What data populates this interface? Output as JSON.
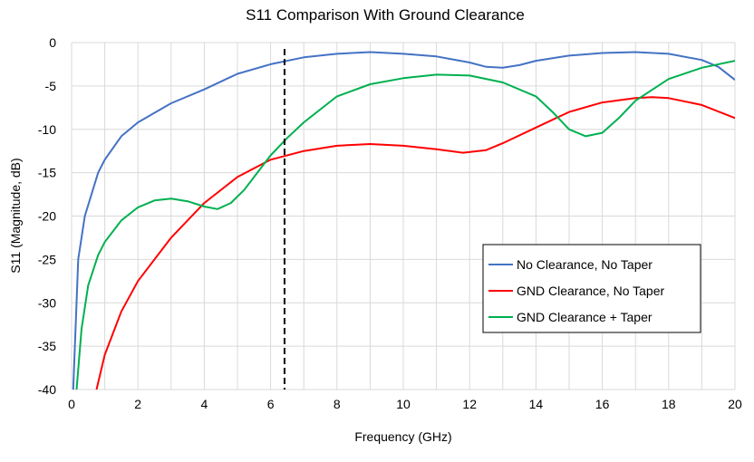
{
  "chart_data": {
    "type": "line",
    "title": "S11 Comparison With Ground Clearance",
    "xlabel": "Frequency (GHz)",
    "ylabel": "S11 (Magnitude, dB)",
    "xlim": [
      0,
      20
    ],
    "ylim": [
      -40,
      0
    ],
    "xticks": [
      0,
      2,
      4,
      6,
      8,
      10,
      12,
      14,
      16,
      18,
      20
    ],
    "yticks": [
      0,
      -5,
      -10,
      -15,
      -20,
      -25,
      -30,
      -35,
      -40
    ],
    "grid": true,
    "legend_position": "right",
    "marker_line": {
      "x": 6.42,
      "style": "dashed",
      "color": "#000000"
    },
    "series": [
      {
        "name": "No Clearance, No Taper",
        "color": "#4472C4",
        "x": [
          0.05,
          0.2,
          0.4,
          0.8,
          1.0,
          1.5,
          2,
          3,
          4,
          5,
          6,
          7,
          8,
          9,
          10,
          11,
          12,
          12.5,
          13,
          13.5,
          14,
          15,
          16,
          17,
          18,
          19,
          19.5,
          20
        ],
        "y": [
          -40,
          -25,
          -20,
          -15,
          -13.5,
          -10.8,
          -9.2,
          -7,
          -5.4,
          -3.6,
          -2.5,
          -1.7,
          -1.3,
          -1.1,
          -1.3,
          -1.6,
          -2.3,
          -2.8,
          -2.9,
          -2.6,
          -2.1,
          -1.5,
          -1.2,
          -1.1,
          -1.3,
          -2.0,
          -2.8,
          -4.3
        ]
      },
      {
        "name": "GND Clearance, No Taper",
        "color": "#FF0000",
        "x": [
          0.75,
          1,
          1.5,
          2,
          3,
          4,
          5,
          6,
          7,
          8,
          9,
          10,
          11,
          11.8,
          12.5,
          13,
          14,
          15,
          16,
          17,
          17.5,
          18,
          19,
          20
        ],
        "y": [
          -40,
          -36,
          -31,
          -27.5,
          -22.5,
          -18.5,
          -15.5,
          -13.5,
          -12.5,
          -11.9,
          -11.7,
          -11.9,
          -12.3,
          -12.7,
          -12.4,
          -11.6,
          -9.8,
          -8,
          -6.9,
          -6.4,
          -6.3,
          -6.4,
          -7.2,
          -8.7
        ]
      },
      {
        "name": "GND Clearance + Taper",
        "color": "#00B050",
        "x": [
          0.15,
          0.3,
          0.5,
          0.8,
          1,
          1.5,
          2,
          2.5,
          3,
          3.5,
          4,
          4.4,
          4.8,
          5.2,
          5.6,
          6,
          6.5,
          7,
          8,
          9,
          10,
          11,
          12,
          13,
          14,
          14.5,
          15,
          15.5,
          16,
          16.5,
          17,
          18,
          19,
          20
        ],
        "y": [
          -40,
          -33,
          -28,
          -24.5,
          -23,
          -20.5,
          -19,
          -18.2,
          -18,
          -18.3,
          -18.9,
          -19.2,
          -18.5,
          -17,
          -15,
          -13,
          -11,
          -9.2,
          -6.2,
          -4.8,
          -4.1,
          -3.7,
          -3.8,
          -4.6,
          -6.2,
          -8,
          -10,
          -10.8,
          -10.4,
          -8.7,
          -6.7,
          -4.2,
          -2.9,
          -2.1
        ]
      }
    ]
  }
}
